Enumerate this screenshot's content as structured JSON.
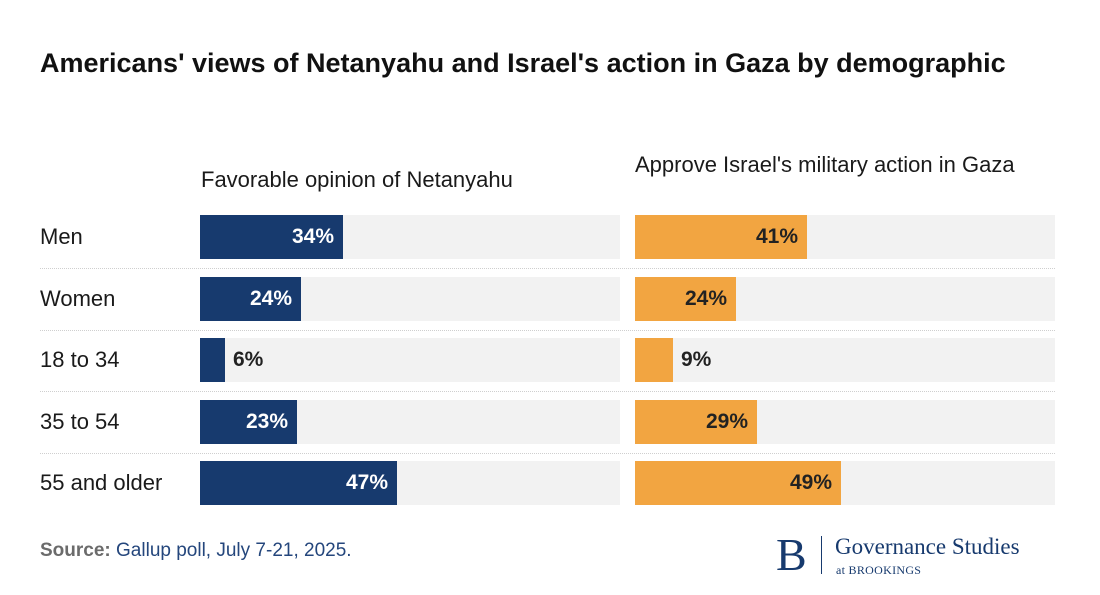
{
  "title": "Americans' views of Netanyahu and Israel's action in Gaza by demographic",
  "chart_data": {
    "type": "bar",
    "orientation": "horizontal",
    "title": "Americans' views of Netanyahu and Israel's action in Gaza by demographic",
    "categories": [
      "Men",
      "Women",
      "18 to 34",
      "35 to 54",
      "55 and older"
    ],
    "series": [
      {
        "name": "Favorable opinion of Netanyahu",
        "values": [
          34,
          24,
          6,
          23,
          47
        ],
        "labels": [
          "34%",
          "24%",
          "6%",
          "23%",
          "47%"
        ],
        "color": "#173a6e"
      },
      {
        "name": "Approve Israel's military action in Gaza",
        "values": [
          41,
          24,
          9,
          29,
          49
        ],
        "labels": [
          "41%",
          "24%",
          "9%",
          "29%",
          "49%"
        ],
        "color": "#f2a541"
      }
    ],
    "xlim": [
      0,
      100
    ],
    "unit": "%"
  },
  "source": {
    "label": "Source:",
    "text": "Gallup poll, July 7-21, 2025."
  },
  "logo": {
    "letter": "B",
    "name": "Governance Studies",
    "sub": "at BROOKINGS"
  },
  "colors": {
    "navy": "#173a6e",
    "orange": "#f2a541",
    "track": "#f2f2f2"
  }
}
